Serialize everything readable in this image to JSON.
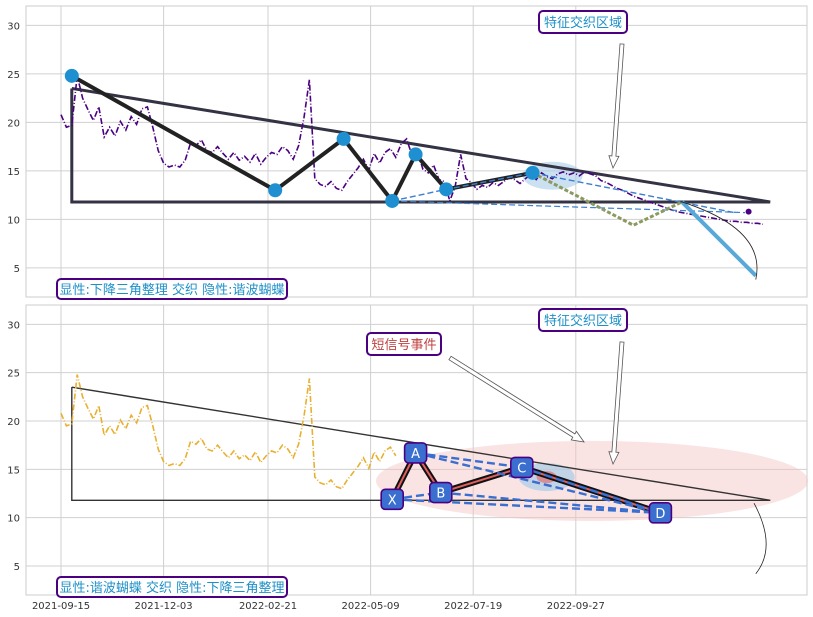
{
  "chart_data": [
    {
      "type": "line",
      "panel": "top",
      "ylim": [
        2,
        32
      ],
      "yticks": [
        5,
        10,
        15,
        20,
        25,
        30
      ],
      "grid": true,
      "series": [
        {
          "color": "#4b0082",
          "style": "dash-dot",
          "x": [
            0,
            3,
            6,
            9,
            12,
            15,
            18,
            21,
            24,
            27,
            30,
            33,
            36,
            39,
            42,
            45,
            48,
            51,
            54,
            57,
            60,
            63,
            66,
            69,
            72,
            75,
            78,
            81,
            84,
            87,
            90,
            93,
            96,
            99,
            102,
            105,
            108,
            111,
            114,
            117,
            120,
            123,
            126,
            129,
            132,
            135,
            138,
            141,
            144,
            147,
            150,
            153,
            156,
            159,
            162,
            165,
            168,
            171,
            174,
            177,
            180,
            183,
            186,
            189,
            192,
            195,
            198,
            201,
            204,
            207,
            210,
            213,
            216,
            219,
            222,
            225,
            228,
            231,
            234,
            237,
            240,
            243,
            246,
            249,
            252,
            255,
            258,
            261,
            264,
            267,
            270,
            273,
            276,
            279,
            282,
            285,
            288,
            291,
            294,
            297,
            300,
            303,
            306,
            309,
            312,
            315,
            318,
            321,
            324,
            327,
            330,
            333,
            336,
            339,
            342,
            345,
            348,
            351,
            354,
            357,
            360,
            363,
            366,
            369,
            372,
            375,
            378,
            381,
            384,
            387,
            390
          ],
          "y": [
            20.8,
            19.5,
            19.7,
            24.8,
            22.5,
            21.3,
            20.2,
            21.6,
            18.5,
            19.5,
            18.6,
            20.1,
            19.2,
            20.6,
            19.8,
            21.4,
            21.6,
            19.5,
            17.1,
            15.8,
            15.4,
            15.6,
            15.4,
            16.1,
            17.9,
            17.6,
            18.2,
            17.1,
            16.9,
            17.5,
            16.8,
            16.2,
            16.9,
            16.1,
            16.5,
            15.9,
            16.8,
            15.7,
            16.4,
            16.9,
            16.7,
            17.5,
            17.1,
            16.2,
            17.6,
            20.5,
            24.4,
            14.2,
            13.6,
            13.4,
            13.9,
            13.2,
            13.0,
            13.9,
            14.6,
            15.3,
            16.2,
            15.1,
            16.8,
            15.8,
            16.9,
            17.3,
            16.4,
            17.8,
            18.3,
            16.6,
            17.1,
            15.2,
            14.8,
            15.6,
            14.1,
            13.9,
            11.9,
            13.4,
            16.7,
            14.2,
            13.8,
            13.1,
            13.5,
            13.3,
            13.8,
            13.5,
            13.9,
            14.3,
            14.1,
            13.7,
            14.2,
            14.6,
            14.1,
            14.8,
            14.4,
            14.2,
            14.7,
            14.9,
            14.6,
            14.8,
            14.5,
            14.9,
            14.7,
            14.5,
            14.0,
            13.8,
            13.5,
            13.2,
            13.0,
            12.7,
            12.4,
            12.2,
            12.0,
            11.8,
            11.6,
            11.4,
            11.2,
            11.0,
            10.8,
            10.7,
            10.6,
            10.5,
            10.4,
            10.3,
            10.2,
            10.1,
            10.0,
            9.9,
            9.8,
            9.8,
            9.7,
            9.7,
            9.6,
            9.6,
            9.5
          ]
        }
      ],
      "pattern_points": [
        {
          "x": 6,
          "y": 24.8
        },
        {
          "x": 119,
          "y": 13.0
        },
        {
          "x": 157,
          "y": 18.3
        },
        {
          "x": 184,
          "y": 11.9
        },
        {
          "x": 197,
          "y": 16.7
        },
        {
          "x": 214,
          "y": 13.1
        },
        {
          "x": 262,
          "y": 14.8
        }
      ],
      "label": "显性:下降三角整理 交织 隐性:谐波蝴蝶",
      "callouts": [
        "特征交织区域"
      ]
    },
    {
      "type": "line",
      "panel": "bottom",
      "ylim": [
        2,
        32
      ],
      "yticks": [
        5,
        10,
        15,
        20,
        25,
        30
      ],
      "grid": true,
      "series": [
        {
          "color": "#e8b030",
          "style": "dash-dot",
          "x": [
            0,
            3,
            6,
            9,
            12,
            15,
            18,
            21,
            24,
            27,
            30,
            33,
            36,
            39,
            42,
            45,
            48,
            51,
            54,
            57,
            60,
            63,
            66,
            69,
            72,
            75,
            78,
            81,
            84,
            87,
            90,
            93,
            96,
            99,
            102,
            105,
            108,
            111,
            114,
            117,
            120,
            123,
            126,
            129,
            132,
            135,
            138,
            141,
            144,
            147,
            150,
            153,
            156,
            159,
            162,
            165,
            168,
            171,
            174,
            177,
            180,
            183,
            186
          ],
          "y": [
            20.8,
            19.5,
            19.7,
            24.8,
            22.5,
            21.3,
            20.2,
            21.6,
            18.5,
            19.5,
            18.6,
            20.1,
            19.2,
            20.6,
            19.8,
            21.4,
            21.6,
            19.5,
            17.1,
            15.8,
            15.4,
            15.6,
            15.4,
            16.1,
            17.9,
            17.6,
            18.2,
            17.1,
            16.9,
            17.5,
            16.8,
            16.2,
            16.9,
            16.1,
            16.5,
            15.9,
            16.8,
            15.7,
            16.4,
            16.9,
            16.7,
            17.5,
            17.1,
            16.2,
            17.6,
            20.5,
            24.4,
            14.2,
            13.6,
            13.4,
            13.9,
            13.2,
            13.0,
            13.9,
            14.6,
            15.3,
            16.2,
            15.1,
            16.8,
            15.8,
            16.9,
            17.3,
            16.4
          ]
        }
      ],
      "pattern_points": [
        {
          "name": "X",
          "x": 184,
          "y": 11.9
        },
        {
          "name": "A",
          "x": 197,
          "y": 16.7
        },
        {
          "name": "B",
          "x": 211,
          "y": 12.6
        },
        {
          "name": "C",
          "x": 256,
          "y": 15.2
        },
        {
          "name": "D",
          "x": 333,
          "y": 10.5
        }
      ],
      "label": "显性:谐波蝴蝶 交织 隐性:下降三角整理",
      "callouts": [
        "短信号事件",
        "特征交织区域"
      ]
    }
  ],
  "xaxis": {
    "ticks": [
      {
        "label": "2021-09-15",
        "x": 0
      },
      {
        "label": "2021-12-03",
        "x": 57
      },
      {
        "label": "2022-02-21",
        "x": 115
      },
      {
        "label": "2022-05-09",
        "x": 172
      },
      {
        "label": "2022-07-19",
        "x": 229
      },
      {
        "label": "2022-09-27",
        "x": 286
      }
    ]
  },
  "colors": {
    "grid": "#d0d0d0",
    "frame": "#cccccc",
    "pattern_line": "#222222",
    "triangle": "#333344",
    "marker": "#1e8fd0",
    "label_border": "#4b0082",
    "label_text": "#1e90c8",
    "callout_text": "#c04040",
    "node_fill": "#3a6fd0"
  }
}
